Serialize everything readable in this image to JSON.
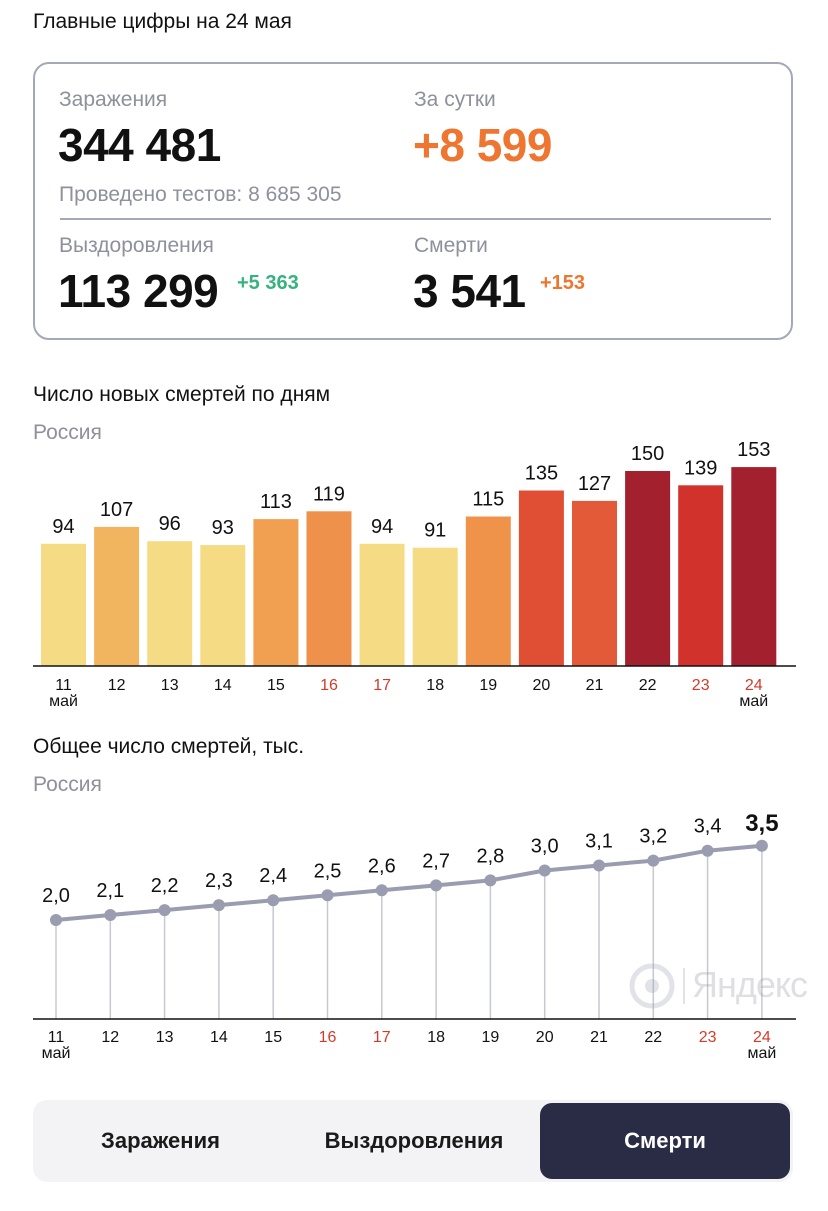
{
  "header": {
    "title": "Главные цифры на 24 мая"
  },
  "summary": {
    "infections_label": "Заражения",
    "infections_value": "344 481",
    "daily_label": "За сутки",
    "daily_value": "+8 599",
    "tests_text": "Проведено тестов: 8 685 305",
    "recoveries_label": "Выздоровления",
    "recoveries_value": "113 299",
    "recoveries_delta": "+5 363",
    "deaths_label": "Смерти",
    "deaths_value": "3 541",
    "deaths_delta": "+153"
  },
  "chart1_meta": {
    "title": "Число новых смертей по дням",
    "region": "Россия"
  },
  "chart2_meta": {
    "title": "Общее число смертей, тыс.",
    "region": "Россия"
  },
  "chart_data": [
    {
      "type": "bar",
      "title": "Число новых смертей по дням",
      "subtitle": "Россия",
      "categories": [
        "11",
        "12",
        "13",
        "14",
        "15",
        "16",
        "17",
        "18",
        "19",
        "20",
        "21",
        "22",
        "23",
        "24"
      ],
      "month_labels": {
        "first": "май",
        "last": "май"
      },
      "highlighted_categories": [
        "16",
        "17",
        "23",
        "24"
      ],
      "values": [
        94,
        107,
        96,
        93,
        113,
        119,
        94,
        91,
        115,
        135,
        127,
        150,
        139,
        153
      ],
      "bar_colors": [
        "#f6db85",
        "#f2b55f",
        "#f6db85",
        "#f6db85",
        "#f0a050",
        "#ee914a",
        "#f6db85",
        "#f6db85",
        "#ef934a",
        "#e04f33",
        "#e25a38",
        "#a3202e",
        "#d2322c",
        "#a3202e"
      ]
    },
    {
      "type": "line",
      "title": "Общее число смертей, тыс.",
      "subtitle": "Россия",
      "x": [
        "11",
        "12",
        "13",
        "14",
        "15",
        "16",
        "17",
        "18",
        "19",
        "20",
        "21",
        "22",
        "23",
        "24"
      ],
      "month_labels": {
        "first": "май",
        "last": "май"
      },
      "highlighted_categories": [
        "16",
        "17",
        "23",
        "24"
      ],
      "values": [
        2.0,
        2.1,
        2.2,
        2.3,
        2.4,
        2.5,
        2.6,
        2.7,
        2.8,
        3.0,
        3.1,
        3.2,
        3.4,
        3.5
      ],
      "value_labels": [
        "2,0",
        "2,1",
        "2,2",
        "2,3",
        "2,4",
        "2,5",
        "2,6",
        "2,7",
        "2,8",
        "3,0",
        "3,1",
        "3,2",
        "3,4",
        "3,5"
      ],
      "line_color": "#9a9cb0"
    }
  ],
  "watermark": {
    "text": "Яндекс"
  },
  "colors": {
    "accent_orange": "#ee7630",
    "accent_green": "#35b27f",
    "weekend_red": "#d33a2c",
    "tab_active_bg": "#2a2c45"
  },
  "tabs": [
    {
      "label": "Заражения",
      "active": false
    },
    {
      "label": "Выздоровления",
      "active": false
    },
    {
      "label": "Смерти",
      "active": true
    }
  ]
}
